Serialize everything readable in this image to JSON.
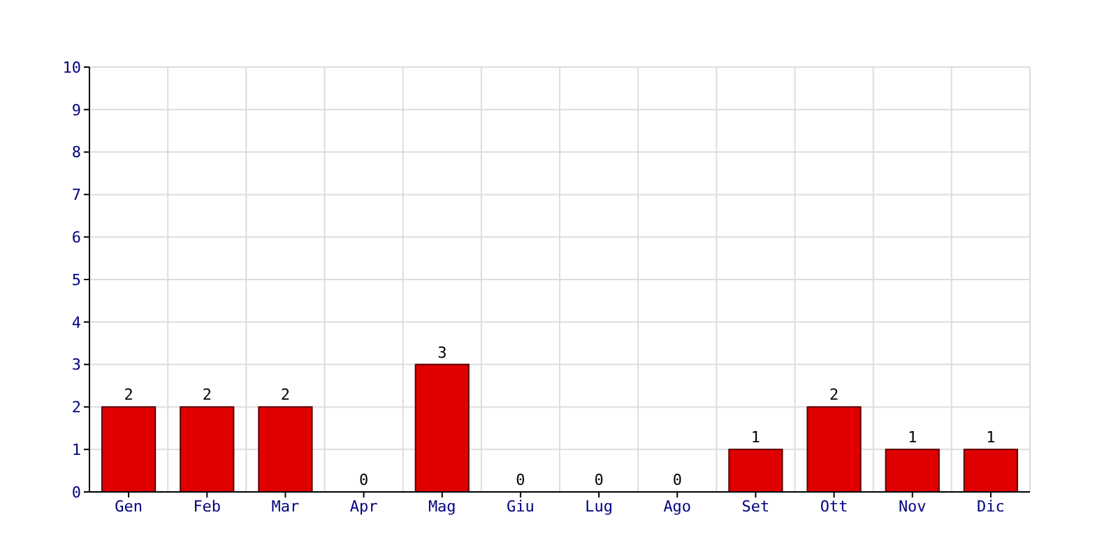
{
  "chart_data": {
    "type": "bar",
    "categories": [
      "Gen",
      "Feb",
      "Mar",
      "Apr",
      "Mag",
      "Giu",
      "Lug",
      "Ago",
      "Set",
      "Ott",
      "Nov",
      "Dic"
    ],
    "values": [
      2,
      2,
      2,
      0,
      3,
      0,
      0,
      0,
      1,
      2,
      1,
      1
    ],
    "color": "#e00000",
    "ylim": [
      0,
      10
    ],
    "yticks": [
      0,
      1,
      2,
      3,
      4,
      5,
      6,
      7,
      8,
      9,
      10
    ],
    "grid": true,
    "data_labels": true
  }
}
